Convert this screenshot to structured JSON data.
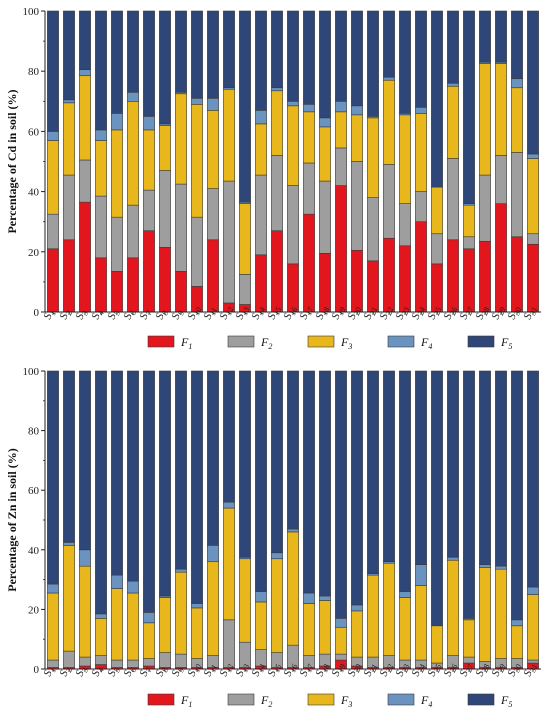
{
  "colors": {
    "F1": "#e3161e",
    "F2": "#9e9e9e",
    "F3": "#e8b71c",
    "F4": "#6a93c0",
    "F5": "#2e4678"
  },
  "chart_data": [
    {
      "type": "bar",
      "stacked": true,
      "ylabel": "Percentage of Cd in soil (%)",
      "ylim": [
        0,
        100
      ],
      "yticks": [
        "0",
        "20",
        "40",
        "60",
        "80",
        "100"
      ],
      "categories": [
        "S1",
        "S2",
        "S3",
        "S4",
        "S5",
        "S6",
        "S7",
        "S8",
        "S9",
        "S10",
        "S11",
        "S12",
        "S13",
        "S14",
        "S15",
        "S16",
        "S17",
        "S18",
        "S19",
        "S20",
        "S21",
        "S22",
        "S23",
        "S24",
        "S25",
        "S26",
        "S27",
        "S28",
        "S29",
        "S30",
        "S31"
      ],
      "legend_position": "bottom",
      "series": [
        {
          "name": "F1",
          "key": "F1",
          "values": [
            21,
            24,
            36.5,
            18,
            13.5,
            18,
            27,
            21.5,
            13.5,
            8.5,
            24,
            3,
            2.5,
            19,
            27,
            16,
            32.5,
            19.5,
            42,
            20.5,
            17,
            24.5,
            22,
            30,
            16,
            24,
            21,
            23.5,
            36,
            25,
            22.5
          ]
        },
        {
          "name": "F2",
          "key": "F2",
          "values": [
            11.5,
            21.5,
            14,
            20.5,
            18,
            17.5,
            13.5,
            25.5,
            29,
            23,
            17,
            40.5,
            10,
            26.5,
            25,
            26,
            17,
            24,
            12.5,
            29.5,
            21,
            24.5,
            14,
            10,
            10,
            27,
            4,
            22,
            16,
            28,
            3.5
          ]
        },
        {
          "name": "F3",
          "key": "F3",
          "values": [
            24.5,
            24,
            28,
            18.5,
            29,
            34.5,
            20,
            15,
            30,
            37.5,
            26,
            30.5,
            23.5,
            17,
            21.5,
            26.5,
            17,
            18,
            12,
            15.5,
            26.5,
            28,
            29.5,
            26,
            15.5,
            24,
            10.5,
            37,
            30.5,
            21.5,
            25
          ]
        },
        {
          "name": "F4",
          "key": "F4",
          "values": [
            3,
            1,
            2,
            3.5,
            5.5,
            3,
            4.5,
            0.5,
            0.5,
            2,
            4,
            0.5,
            0.5,
            4.5,
            1,
            1.5,
            2.5,
            3,
            3.5,
            3,
            0.5,
            1,
            0.5,
            2,
            0,
            1,
            0.5,
            0.5,
            0.5,
            3,
            1.5
          ]
        },
        {
          "name": "F5",
          "key": "F5",
          "values": [
            40,
            29.5,
            19.5,
            39.5,
            34,
            27,
            35,
            37.5,
            27,
            29,
            29,
            25.5,
            63.5,
            33,
            25.5,
            30,
            31,
            35.5,
            30,
            31.5,
            35,
            22,
            34,
            32,
            58.5,
            24,
            64,
            17,
            17,
            22.5,
            47.5
          ]
        }
      ]
    },
    {
      "type": "bar",
      "stacked": true,
      "ylabel": "Percentage of Zn in soil (%)",
      "ylim": [
        0,
        100
      ],
      "yticks": [
        "0",
        "20",
        "40",
        "60",
        "80",
        "100"
      ],
      "categories": [
        "S1",
        "S2",
        "S3",
        "S4",
        "S5",
        "S6",
        "S7",
        "S8",
        "S9",
        "S10",
        "S11",
        "S12",
        "S13",
        "S14",
        "S15",
        "S16",
        "S17",
        "S18",
        "S19",
        "S20",
        "S21",
        "S22",
        "S23",
        "S24",
        "S25",
        "S26",
        "S27",
        "S28",
        "S29",
        "S30",
        "S31"
      ],
      "legend_position": "bottom",
      "series": [
        {
          "name": "F1",
          "key": "F1",
          "values": [
            0.5,
            0.5,
            1,
            1.5,
            0.5,
            0.5,
            1,
            0.5,
            0.5,
            0.5,
            0.5,
            0.5,
            0.5,
            1,
            0.5,
            0.5,
            0.5,
            1,
            3,
            1,
            0.5,
            0.5,
            0.5,
            0.5,
            0.5,
            0.5,
            2,
            0.5,
            0.5,
            0.5,
            2
          ]
        },
        {
          "name": "F2",
          "key": "F2",
          "values": [
            2.5,
            5.5,
            3,
            3,
            2.5,
            2.5,
            2.5,
            5,
            4.5,
            3,
            4,
            16,
            8.5,
            5.5,
            5,
            7.5,
            4,
            4,
            2,
            3,
            3.5,
            4,
            2.5,
            2.5,
            1.5,
            4,
            2,
            2,
            3,
            3,
            1
          ]
        },
        {
          "name": "F3",
          "key": "F3",
          "values": [
            22.5,
            35.5,
            30.5,
            12.5,
            24,
            22.5,
            12,
            18.5,
            27.5,
            17,
            31.5,
            37.5,
            28,
            16,
            31.5,
            38,
            17.5,
            18,
            9,
            15.5,
            27.5,
            31,
            21,
            25,
            12.5,
            32,
            12.5,
            31.5,
            30,
            11,
            22
          ]
        },
        {
          "name": "F4",
          "key": "F4",
          "values": [
            3,
            1,
            5.5,
            1.5,
            4.5,
            4,
            3.5,
            0.5,
            1,
            1.5,
            5.5,
            2,
            0.5,
            3.5,
            2,
            1,
            3.5,
            1.5,
            3,
            2,
            0.5,
            0.5,
            2,
            7,
            0,
            1,
            0.5,
            1,
            1,
            2,
            2.5
          ]
        },
        {
          "name": "F5",
          "key": "F5",
          "values": [
            71.5,
            57.5,
            60,
            81.5,
            68.5,
            70.5,
            81,
            75.5,
            66.5,
            78,
            58.5,
            44,
            62.5,
            74,
            61,
            53,
            74.5,
            75.5,
            83,
            78.5,
            68,
            64,
            74,
            65,
            85.5,
            62.5,
            83,
            65,
            65.5,
            83.5,
            72.5
          ]
        }
      ]
    }
  ]
}
